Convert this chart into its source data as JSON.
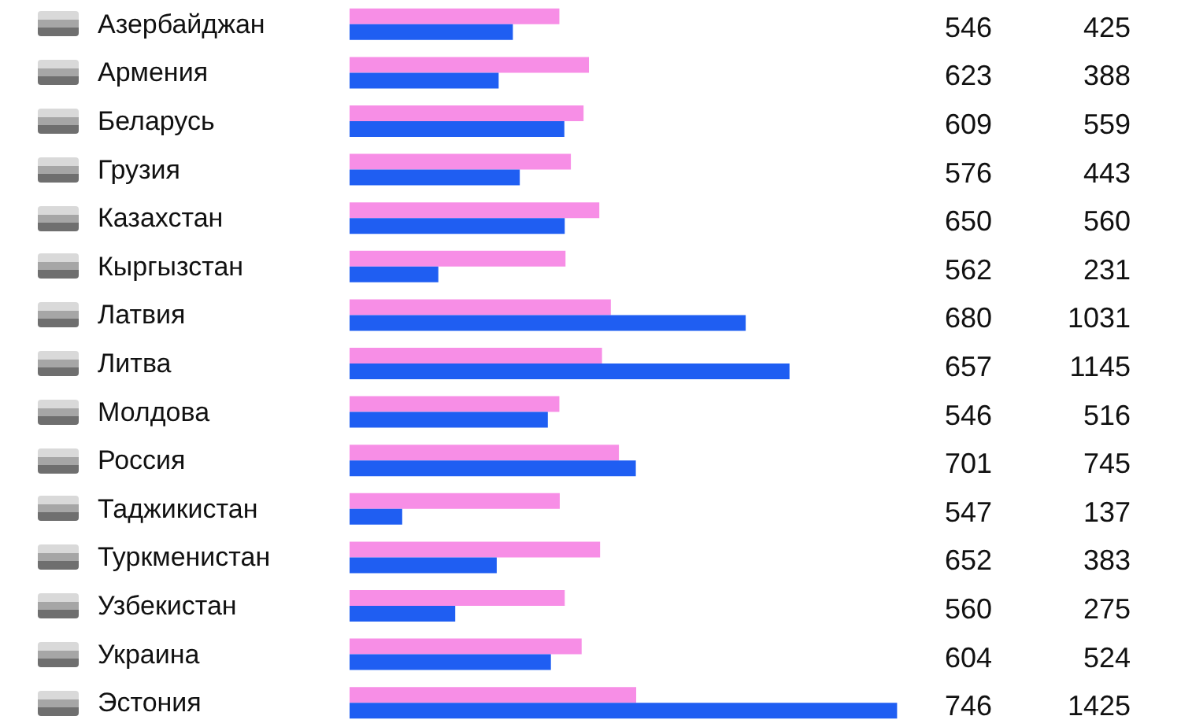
{
  "chart_data": {
    "type": "bar",
    "orientation": "horizontal",
    "categories": [
      "Азербайджан",
      "Армения",
      "Беларусь",
      "Грузия",
      "Казахстан",
      "Кыргызстан",
      "Латвия",
      "Литва",
      "Молдова",
      "Россия",
      "Таджикистан",
      "Туркменистан",
      "Узбекистан",
      "Украина",
      "Эстония"
    ],
    "series": [
      {
        "color": "#f78ee6",
        "values": [
          546,
          623,
          609,
          576,
          650,
          562,
          680,
          657,
          546,
          701,
          547,
          652,
          560,
          604,
          746
        ]
      },
      {
        "color": "#1f5ef2",
        "values": [
          425,
          388,
          559,
          443,
          560,
          231,
          1031,
          1145,
          516,
          745,
          137,
          383,
          275,
          524,
          1425
        ]
      }
    ],
    "tick_labels": false,
    "data_labels": true
  }
}
